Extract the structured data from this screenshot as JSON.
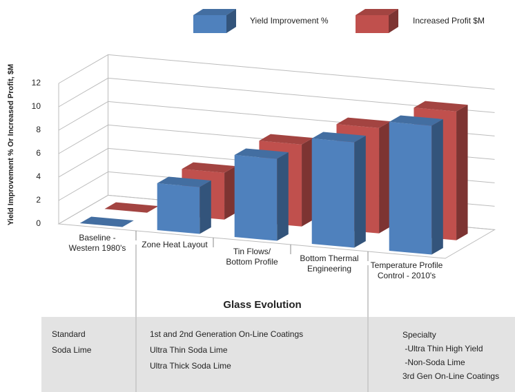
{
  "chart_data": {
    "type": "bar3d",
    "y_label": "Yield Improvement % Or Increased Profit, $M",
    "x_label": "Glass Evolution",
    "categories": [
      "Baseline -\nWestern 1980's",
      "Zone Heat Layout",
      "Tin Flows/\nBottom Profile",
      "Bottom Thermal\nEngineering",
      "Temperature Profile\nControl - 2010's"
    ],
    "series": [
      {
        "name": "Yield Improvement %",
        "color": "#4f81bd",
        "values": [
          0,
          4,
          7,
          9,
          11
        ]
      },
      {
        "name": "Increased Profit $M",
        "color": "#c0504d",
        "values": [
          0,
          4,
          7,
          9,
          11
        ]
      }
    ],
    "ylim": [
      0,
      12
    ],
    "yticks": [
      0,
      2,
      4,
      6,
      8,
      10,
      12
    ],
    "grid": true,
    "footer_groups": [
      {
        "lines": [
          "Standard",
          "Soda Lime"
        ]
      },
      {
        "lines": [
          "1st and 2nd Generation On-Line Coatings",
          "Ultra Thin Soda Lime",
          "Ultra Thick Soda Lime"
        ]
      },
      {
        "lines": [
          "Specialty",
          " -Ultra Thin High Yield",
          " -Non-Soda Lime",
          "3rd Gen On-Line Coatings"
        ]
      }
    ]
  }
}
